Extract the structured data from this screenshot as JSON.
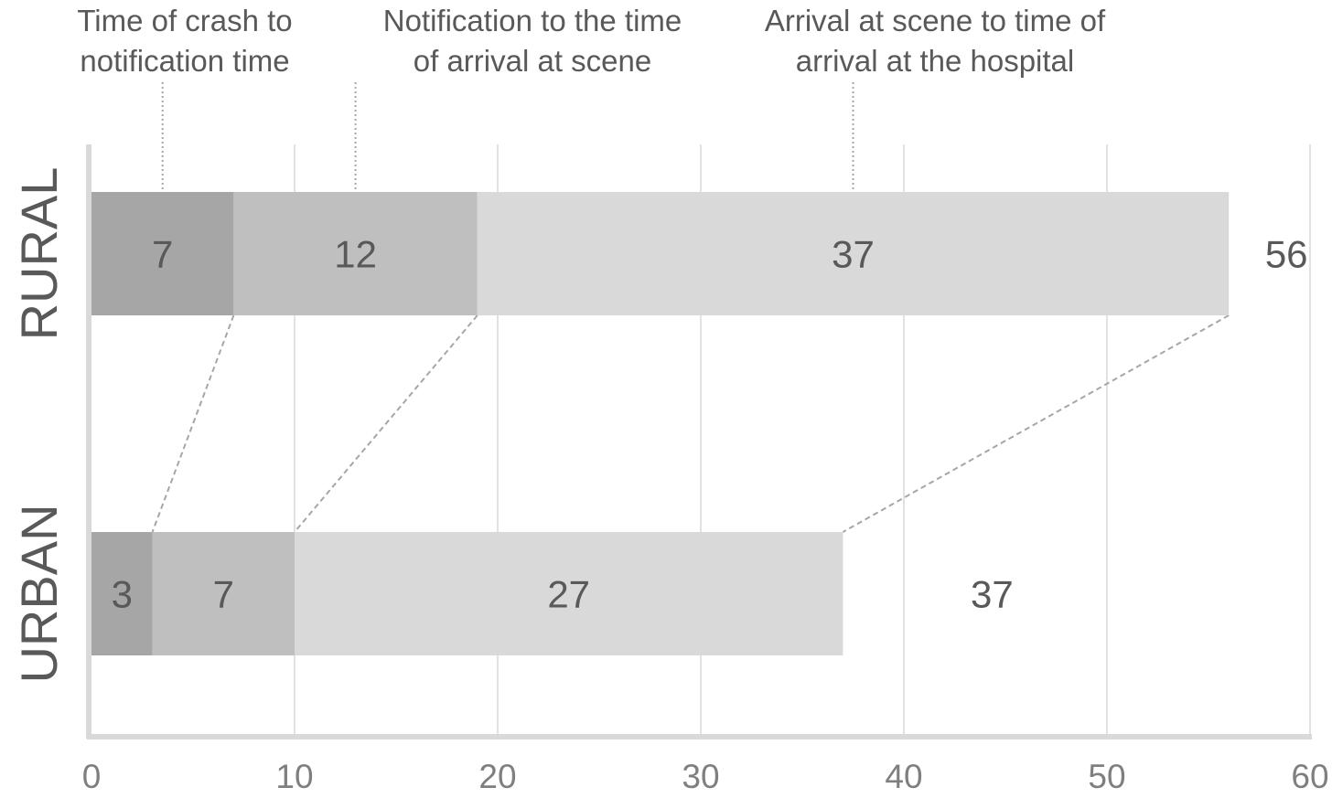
{
  "chart_data": {
    "type": "bar",
    "orientation": "horizontal",
    "stacked": true,
    "categories": [
      "RURAL",
      "URBAN"
    ],
    "series": [
      {
        "name": "Time of crash to notification time",
        "values": [
          7,
          3
        ],
        "color": "#a6a6a6"
      },
      {
        "name": "Notification to the time of arrival at scene",
        "values": [
          12,
          7
        ],
        "color": "#bfbfbf"
      },
      {
        "name": "Arrival at scene to time of arrival at the hospital",
        "values": [
          37,
          27
        ],
        "color": "#d9d9d9"
      }
    ],
    "totals": [
      56,
      37
    ],
    "series_label_lines": [
      [
        "Time of crash to",
        "notification time"
      ],
      [
        "Notification to the time",
        "of arrival at scene"
      ],
      [
        "Arrival at scene to time of",
        "arrival at the hospital"
      ]
    ],
    "xlim": [
      0,
      60
    ],
    "xticks": [
      0,
      10,
      20,
      30,
      40,
      50,
      60
    ],
    "grid": true,
    "legend": "top, series labels with leader lines",
    "colors": {
      "axis": "#d9d9d9",
      "grid": "#d9d9d9",
      "connector": "#a6a6a6",
      "text": "#595959",
      "tick_text": "#7f7f7f"
    }
  }
}
